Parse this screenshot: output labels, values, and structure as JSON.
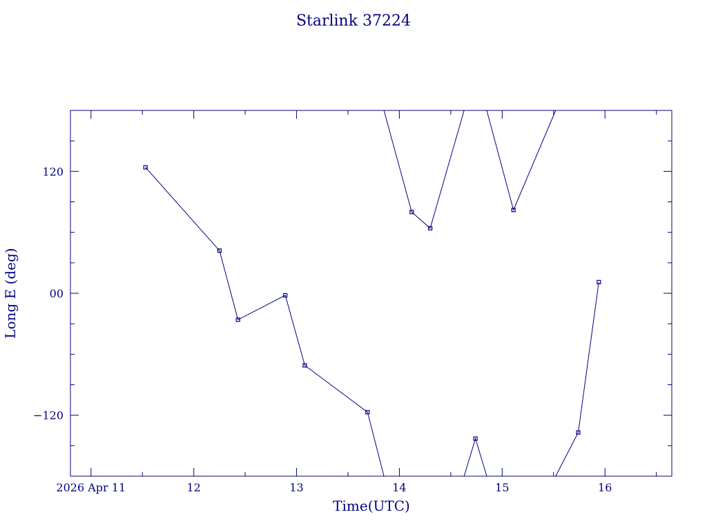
{
  "chart_data": {
    "type": "line",
    "title": "Starlink 37224",
    "xlabel": "Time(UTC)",
    "ylabel": "Long E (deg)",
    "color": "#000080",
    "xlim": [
      10.8,
      16.65
    ],
    "ylim": [
      -180,
      180
    ],
    "x_ticks": [
      {
        "value": 11,
        "label": "2026 Apr 11"
      },
      {
        "value": 12,
        "label": "12"
      },
      {
        "value": 13,
        "label": "13"
      },
      {
        "value": 14,
        "label": "14"
      },
      {
        "value": 15,
        "label": "15"
      },
      {
        "value": 16,
        "label": "16"
      }
    ],
    "y_ticks": [
      {
        "value": 120,
        "label": "120"
      },
      {
        "value": 0,
        "label": "00"
      },
      {
        "value": -120,
        "label": "−120"
      }
    ],
    "series": [
      {
        "points": [
          {
            "x": 11.53,
            "y": 124,
            "marker": true
          },
          {
            "x": 12.25,
            "y": 42,
            "marker": true
          },
          {
            "x": 12.43,
            "y": -26,
            "marker": true
          },
          {
            "x": 12.89,
            "y": -2,
            "marker": true
          },
          {
            "x": 13.08,
            "y": -71,
            "marker": true
          },
          {
            "x": 13.69,
            "y": -117,
            "marker": true
          },
          {
            "x": 13.85,
            "y": -180,
            "marker": false
          }
        ]
      },
      {
        "points": [
          {
            "x": 13.85,
            "y": 180,
            "marker": false
          },
          {
            "x": 14.12,
            "y": 80,
            "marker": true
          },
          {
            "x": 14.3,
            "y": 64,
            "marker": true
          },
          {
            "x": 14.63,
            "y": 180,
            "marker": false
          }
        ]
      },
      {
        "points": [
          {
            "x": 14.63,
            "y": -180,
            "marker": false
          },
          {
            "x": 14.74,
            "y": -143,
            "marker": true
          },
          {
            "x": 14.85,
            "y": -180,
            "marker": false
          }
        ]
      },
      {
        "points": [
          {
            "x": 14.85,
            "y": 180,
            "marker": false
          },
          {
            "x": 15.11,
            "y": 82,
            "marker": true
          },
          {
            "x": 15.52,
            "y": 180,
            "marker": false
          }
        ]
      },
      {
        "points": [
          {
            "x": 15.52,
            "y": -180,
            "marker": false
          },
          {
            "x": 15.74,
            "y": -137,
            "marker": true
          },
          {
            "x": 15.94,
            "y": 11,
            "marker": true
          }
        ]
      }
    ]
  }
}
